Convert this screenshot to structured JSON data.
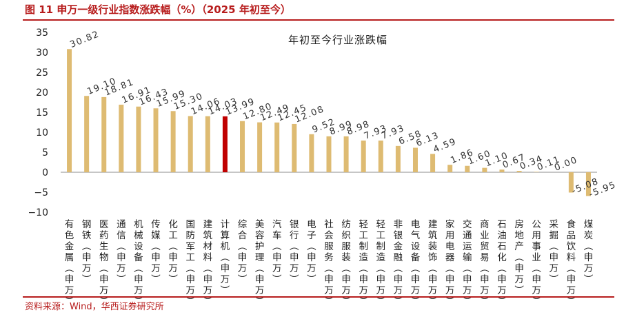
{
  "figure": {
    "title": "图 11    申万一级行业指数涨跌幅（%）（2025 年初至今）",
    "source": "资料来源：Wind，华西证券研究所"
  },
  "colors": {
    "bar": "#DEBB72",
    "highlight": "#C00000",
    "rule": "#B71C1C"
  },
  "chart_data": {
    "type": "bar",
    "title": "年初至今行业涨跌幅",
    "xlabel": "",
    "ylabel": "",
    "ylim": [
      -10,
      35
    ],
    "yticks": [
      -10,
      -5,
      0,
      5,
      10,
      15,
      20,
      25,
      30,
      35
    ],
    "ytick_labels": [
      "−10",
      "−5",
      "0",
      "5",
      "10",
      "15",
      "20",
      "25",
      "30",
      "35"
    ],
    "grid": false,
    "legend": "none",
    "highlight_category": "计算机(申万)",
    "categories": [
      "有色金属(申万)",
      "钢铁(申万)",
      "医药生物(申万)",
      "通信(申万)",
      "机械设备(申万)",
      "传媒(申万)",
      "化工(申万)",
      "国防军工(申万)",
      "建筑材料(申万)",
      "计算机(申万)",
      "综合(申万)",
      "美容护理(申万)",
      "汽车(申万)",
      "银行(申万)",
      "电子(申万)",
      "社会服务(申万)",
      "纺织服装(申万)",
      "轻工制造(申万)",
      "轻工制造(申万)",
      "非银金融(申万)",
      "电气设备(申万)",
      "建筑装饰(申万)",
      "家用电器(申万)",
      "交通运输(申万)",
      "商业贸易(申万)",
      "石油石化(申万)",
      "房地产(申万)",
      "公用事业(申万)",
      "采掘(申万)",
      "食品饮料(申万)",
      "煤炭(申万)"
    ],
    "values": [
      30.82,
      19.1,
      18.81,
      16.91,
      16.43,
      15.99,
      15.3,
      14.06,
      14.03,
      13.99,
      12.8,
      12.49,
      12.45,
      12.08,
      9.52,
      8.99,
      8.98,
      7.93,
      7.93,
      6.58,
      6.13,
      4.59,
      1.86,
      1.6,
      1.1,
      0.67,
      0.34,
      0.11,
      0.0,
      -5.08,
      -5.95
    ],
    "data_labels": [
      "30.82",
      "19.10",
      "18.81",
      "16.91",
      "16.43",
      "15.99",
      "15.30",
      "14.06",
      "14.03",
      "13.99",
      "12.80",
      "12.49",
      "12.45",
      "12.08",
      "9.52",
      "8.99",
      "8.98",
      "7.93",
      "7.93",
      "6.58",
      "6.13",
      "4.59",
      "1.86",
      "1.60",
      "1.10",
      "0.67",
      "0.34",
      "0.11",
      "0.00",
      "-5.08",
      "-5.95"
    ]
  }
}
